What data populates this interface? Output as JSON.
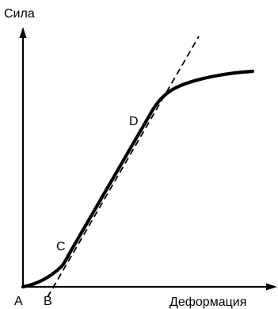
{
  "axes": {
    "y_label": "Сила",
    "x_label": "Деформация"
  },
  "points": {
    "a": "A",
    "b": "B",
    "c": "C",
    "d": "D"
  },
  "colors": {
    "ink": "#000000",
    "background": "#ffffff"
  }
}
